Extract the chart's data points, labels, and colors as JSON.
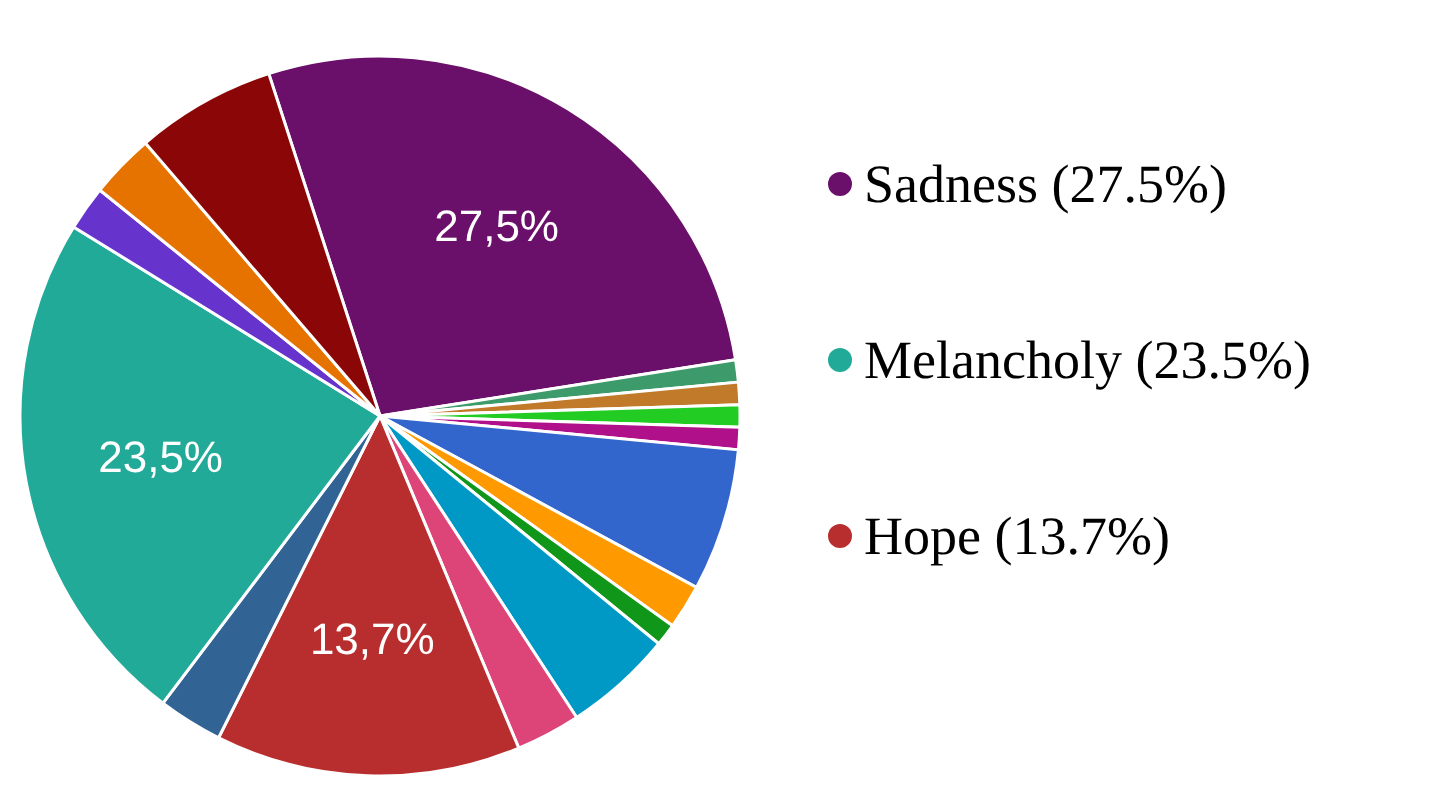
{
  "chart_data": {
    "type": "pie",
    "legend": "right",
    "categories": [
      "Sadness (27.5%)",
      null,
      null,
      null,
      null,
      null,
      null,
      null,
      null,
      null,
      "Hope (13.7%)",
      null,
      "Melancholy (23.5%)",
      null,
      null,
      null
    ],
    "values": [
      27.5,
      1,
      1,
      1,
      1,
      6.4,
      2,
      1,
      4.9,
      2.9,
      13.7,
      2.9,
      23.5,
      2,
      2.9,
      6.3
    ],
    "colors": [
      "#6a0f6a",
      "#3d9a6a",
      "#c07a2a",
      "#22cc22",
      "#b0108a",
      "#3366cc",
      "#ff9900",
      "#109618",
      "#0099c6",
      "#dd4477",
      "#b82e2e",
      "#316395",
      "#22aa99",
      "#6633cc",
      "#e67300",
      "#8b0707"
    ],
    "value_labels": [
      "27,5%",
      null,
      null,
      null,
      null,
      null,
      null,
      null,
      null,
      null,
      "13,7%",
      null,
      "23,5%",
      null,
      null,
      null
    ]
  }
}
